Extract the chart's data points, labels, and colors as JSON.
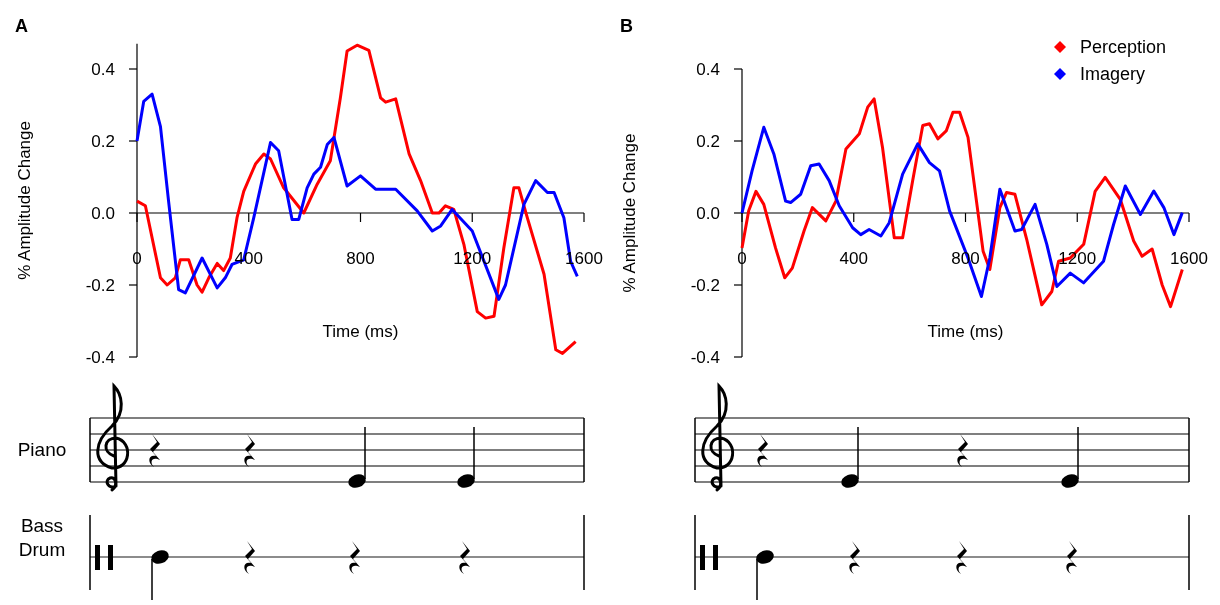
{
  "chart_data": [
    {
      "type": "line",
      "title": "A",
      "xlabel": "Time (ms)",
      "ylabel": "% Amplitude Change",
      "xlim": [
        0,
        1600
      ],
      "ylim": [
        -0.4,
        0.47
      ],
      "xticks": [
        0,
        400,
        800,
        1200,
        1600
      ],
      "yticks": [
        -0.4,
        -0.2,
        {
          "value": 0,
          "label": "0.0"
        },
        0.2,
        0.4
      ],
      "annotations": [
        "Piano",
        "Bass Drum"
      ],
      "series": [
        {
          "color": "#ff0000",
          "x": [
            0,
            30,
            84,
            108,
            137,
            155,
            185,
            215,
            233,
            257,
            287,
            310,
            334,
            358,
            382,
            424,
            454,
            478,
            525,
            597,
            645,
            692,
            728,
            752,
            788,
            830,
            872,
            890,
            926,
            974,
            1015,
            1057,
            1081,
            1104,
            1134,
            1170,
            1218,
            1248,
            1278,
            1313,
            1349,
            1367,
            1397,
            1457,
            1499,
            1523,
            1570
          ],
          "values": [
            0.033,
            0.02,
            -0.18,
            -0.2,
            -0.18,
            -0.13,
            -0.13,
            -0.2,
            -0.22,
            -0.18,
            -0.14,
            -0.16,
            -0.125,
            -0.013,
            0.06,
            0.136,
            0.164,
            0.15,
            0.07,
            0,
            0.08,
            0.145,
            0.32,
            0.45,
            0.466,
            0.452,
            0.32,
            0.308,
            0.317,
            0.164,
            0.09,
            0,
            0,
            0.02,
            0.01,
            -0.087,
            -0.274,
            -0.292,
            -0.287,
            -0.097,
            0.07,
            0.07,
            -0.013,
            -0.17,
            -0.38,
            -0.39,
            -0.357
          ]
        },
        {
          "color": "#0000ff",
          "x": [
            0,
            24,
            54,
            84,
            113,
            149,
            173,
            233,
            287,
            316,
            340,
            382,
            418,
            478,
            507,
            555,
            579,
            609,
            633,
            657,
            681,
            705,
            752,
            800,
            854,
            926,
            1003,
            1057,
            1087,
            1128,
            1200,
            1295,
            1319,
            1385,
            1427,
            1469,
            1493,
            1528,
            1552,
            1576
          ],
          "values": [
            0.2,
            0.31,
            0.33,
            0.24,
            0.033,
            -0.213,
            -0.222,
            -0.125,
            -0.208,
            -0.18,
            -0.143,
            -0.13,
            -0.013,
            0.196,
            0.173,
            -0.018,
            -0.018,
            0.07,
            0.108,
            0.127,
            0.19,
            0.21,
            0.075,
            0.103,
            0.066,
            0.066,
            0.006,
            -0.05,
            -0.036,
            0.01,
            -0.05,
            -0.24,
            -0.2,
            0.024,
            0.09,
            0.057,
            0.057,
            -0.013,
            -0.134,
            -0.176
          ]
        }
      ]
    },
    {
      "type": "line",
      "title": "B",
      "xlabel": "Time (ms)",
      "ylabel": "% Amplitude Change",
      "xlim": [
        0,
        1600
      ],
      "ylim": [
        -0.4,
        0.4
      ],
      "xticks": [
        0,
        400,
        800,
        1200,
        1600
      ],
      "yticks": [
        -0.4,
        -0.2,
        {
          "value": 0,
          "label": "0.0"
        },
        0.2,
        0.4
      ],
      "legend": "top right",
      "series": [
        {
          "name": "Perception",
          "color": "#ff0000",
          "x": [
            0,
            24,
            50,
            78,
            120,
            153,
            180,
            222,
            252,
            300,
            336,
            372,
            420,
            450,
            473,
            503,
            545,
            575,
            611,
            647,
            671,
            701,
            731,
            755,
            779,
            809,
            863,
            887,
            923,
            947,
            977,
            1019,
            1073,
            1109,
            1133,
            1175,
            1223,
            1264,
            1300,
            1354,
            1402,
            1432,
            1468,
            1504,
            1534,
            1576
          ],
          "values": [
            -0.097,
            0.006,
            0.06,
            0.024,
            -0.097,
            -0.18,
            -0.153,
            -0.05,
            0.015,
            -0.022,
            0.033,
            0.178,
            0.22,
            0.294,
            0.317,
            0.182,
            -0.069,
            -0.069,
            0.09,
            0.243,
            0.248,
            0.206,
            0.228,
            0.28,
            0.28,
            0.21,
            -0.106,
            -0.157,
            0.015,
            0.057,
            0.052,
            -0.073,
            -0.255,
            -0.218,
            -0.134,
            -0.125,
            -0.087,
            0.06,
            0.099,
            0.038,
            -0.078,
            -0.12,
            -0.1,
            -0.2,
            -0.26,
            -0.157
          ]
        },
        {
          "name": "Imagery",
          "color": "#0000ff",
          "x": [
            0,
            36,
            78,
            114,
            156,
            174,
            210,
            246,
            276,
            312,
            348,
            396,
            425,
            455,
            497,
            527,
            575,
            629,
            671,
            707,
            743,
            809,
            857,
            887,
            923,
            977,
            1001,
            1049,
            1091,
            1127,
            1175,
            1223,
            1294,
            1330,
            1372,
            1426,
            1474,
            1510,
            1546,
            1576
          ],
          "values": [
            0,
            0.117,
            0.238,
            0.164,
            0.033,
            0.029,
            0.052,
            0.131,
            0.136,
            0.09,
            0.02,
            -0.041,
            -0.06,
            -0.046,
            -0.064,
            -0.027,
            0.108,
            0.192,
            0.14,
            0.117,
            0.006,
            -0.125,
            -0.232,
            -0.125,
            0.066,
            -0.05,
            -0.046,
            0.024,
            -0.087,
            -0.204,
            -0.167,
            -0.194,
            -0.134,
            -0.032,
            0.075,
            -0.004,
            0.061,
            0.015,
            -0.06,
            0.001
          ]
        }
      ]
    }
  ]
}
